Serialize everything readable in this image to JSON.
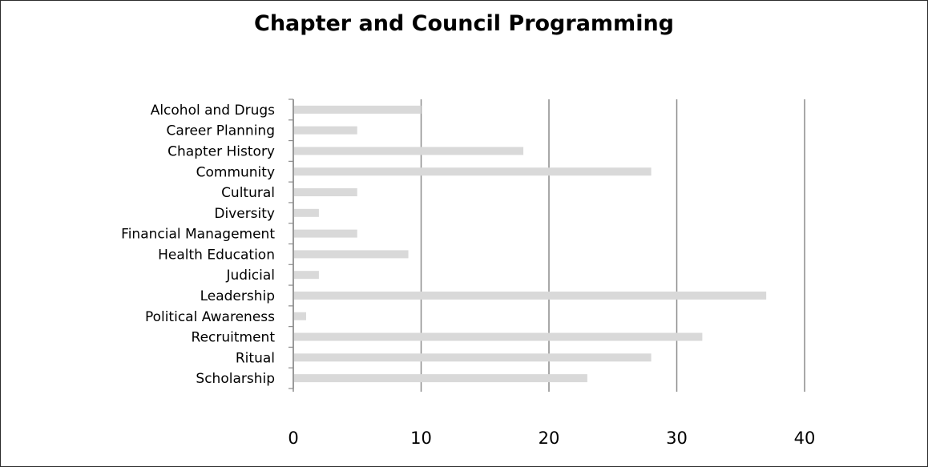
{
  "chart_data": {
    "type": "bar",
    "orientation": "horizontal",
    "title": "Chapter and Council Programming",
    "xlabel": "",
    "ylabel": "",
    "categories": [
      "Alcohol and Drugs",
      "Career Planning",
      "Chapter History",
      "Community",
      "Cultural",
      "Diversity",
      "Financial Management",
      "Health Education",
      "Judicial",
      "Leadership",
      "Political Awareness",
      "Recruitment",
      "Ritual",
      "Scholarship"
    ],
    "values": [
      10,
      5,
      18,
      28,
      5,
      2,
      5,
      9,
      2,
      37,
      1,
      32,
      28,
      23
    ],
    "xlim": [
      0,
      40
    ],
    "xticks": [
      "0",
      "10",
      "20",
      "30",
      "40"
    ],
    "grid": "vertical major gridlines",
    "legend": "none",
    "colors": {
      "bar": "#d9d9d9",
      "gridline": "#8c8c8c",
      "axis": "#8c8c8c"
    }
  }
}
